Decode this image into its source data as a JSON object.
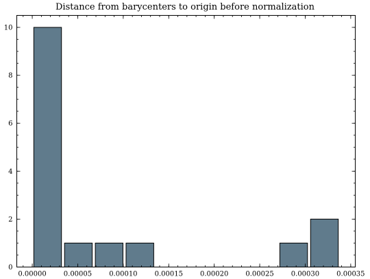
{
  "chart_data": {
    "type": "bar",
    "title": "Distance from barycenters to origin before normalization",
    "xlabel": "",
    "ylabel": "",
    "bin_edges": [
      0.0,
      3.38e-05,
      6.76e-05,
      0.0001014,
      0.0001352,
      0.000169,
      0.0002028,
      0.0002366,
      0.0002704,
      0.0003042,
      0.000338
    ],
    "values": [
      10,
      1,
      1,
      1,
      0,
      0,
      0,
      0,
      1,
      2
    ],
    "xlim": [
      -1.7e-05,
      0.000355
    ],
    "ylim": [
      0,
      10.5
    ],
    "xticks": [
      "0.00000",
      "0.00005",
      "0.00010",
      "0.00015",
      "0.00020",
      "0.00025",
      "0.00030",
      "0.00035"
    ],
    "xtick_values": [
      0,
      5e-05,
      0.0001,
      0.00015,
      0.0002,
      0.00025,
      0.0003,
      0.00035
    ],
    "yticks": [
      "0",
      "2",
      "4",
      "6",
      "8",
      "10"
    ],
    "ytick_values": [
      0,
      2,
      4,
      6,
      8,
      10
    ],
    "bar_color": "#607b8c",
    "edge_color": "#000000",
    "grid": false
  }
}
